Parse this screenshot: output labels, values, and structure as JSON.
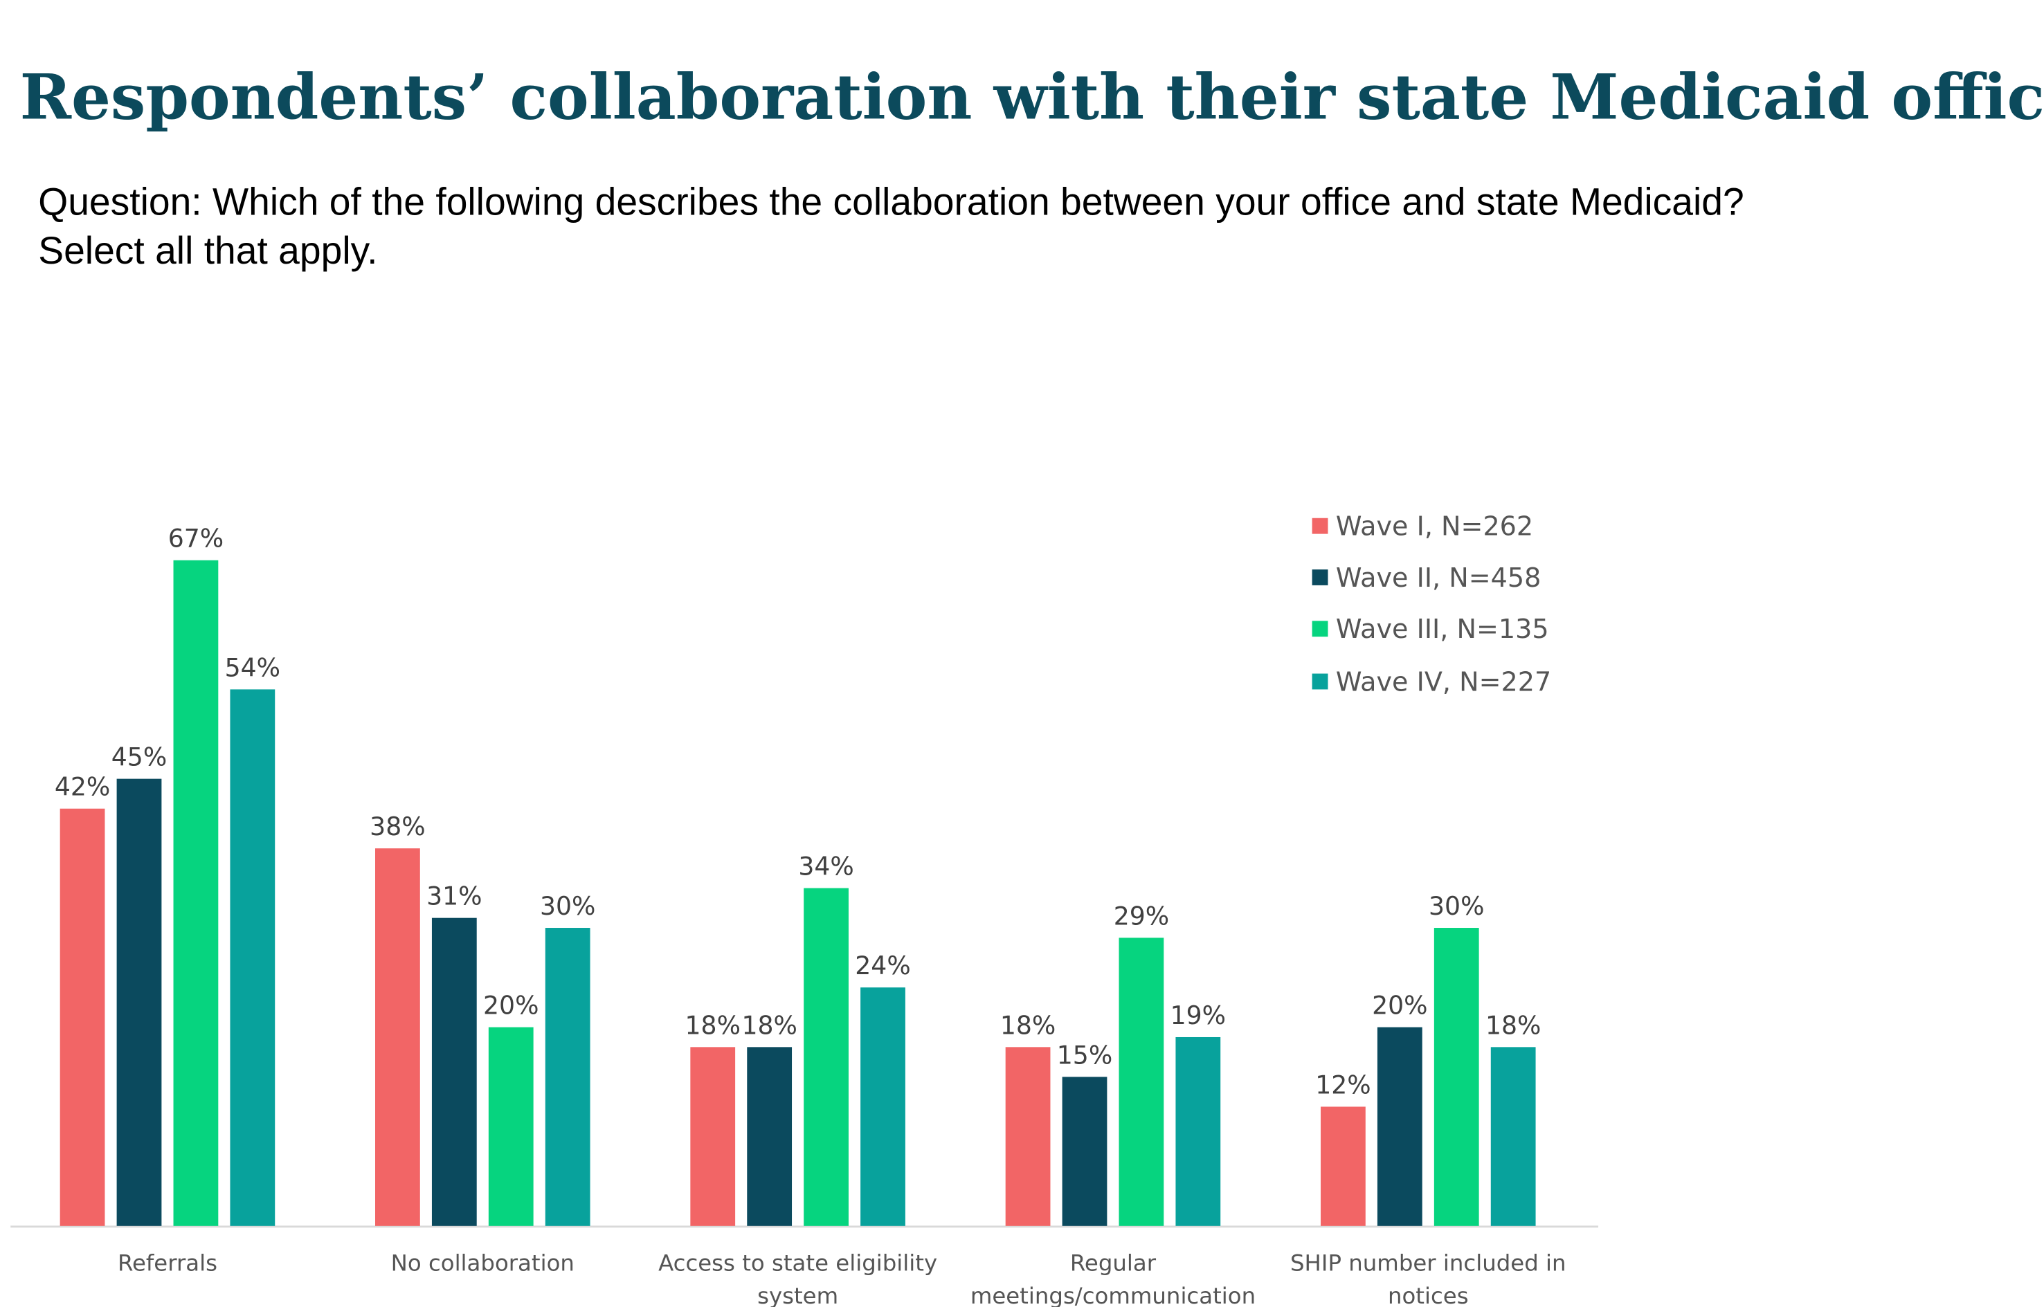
{
  "title": "Respondents’ collaboration with their state Medicaid offices vary.",
  "question_lines": [
    "Question: Which of the following describes the collaboration between your office and state Medicaid?",
    "Select all that apply."
  ],
  "chart_data": {
    "type": "bar",
    "categories": [
      [
        "Referrals"
      ],
      [
        "No collaboration"
      ],
      [
        "Access to state eligibility",
        "system"
      ],
      [
        "Regular",
        "meetings/communication"
      ],
      [
        "SHIP number included in",
        "notices"
      ]
    ],
    "series": [
      {
        "name": "Wave I, N=262",
        "color": "#f26566",
        "values": [
          42,
          38,
          18,
          18,
          12
        ]
      },
      {
        "name": "Wave II, N=458",
        "color": "#0b4a5e",
        "values": [
          45,
          31,
          18,
          15,
          20
        ]
      },
      {
        "name": "Wave III, N=135",
        "color": "#06d47f",
        "values": [
          67,
          20,
          34,
          29,
          30
        ]
      },
      {
        "name": "Wave IV, N=227",
        "color": "#08a29c",
        "values": [
          54,
          30,
          24,
          19,
          18
        ]
      }
    ],
    "value_suffix": "%",
    "ylim": [
      0,
      70
    ],
    "grid": false,
    "legend_position": "top-right",
    "data_labels": true
  }
}
